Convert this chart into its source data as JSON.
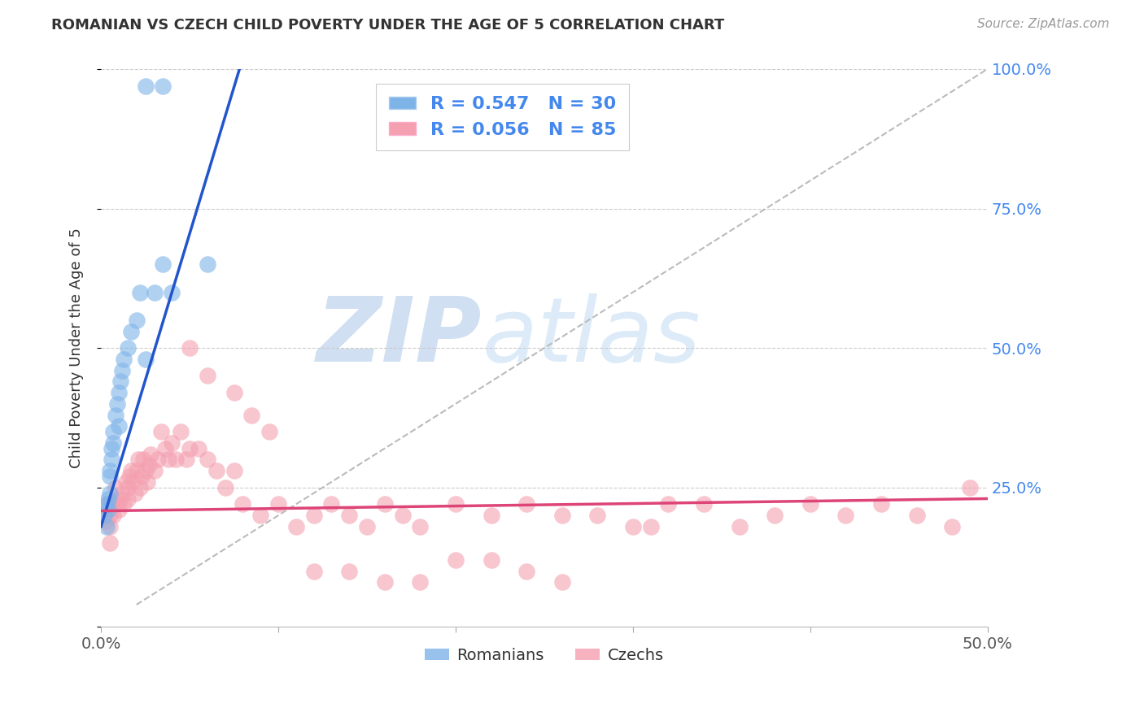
{
  "title": "ROMANIAN VS CZECH CHILD POVERTY UNDER THE AGE OF 5 CORRELATION CHART",
  "source": "Source: ZipAtlas.com",
  "ylabel": "Child Poverty Under the Age of 5",
  "xlim": [
    0,
    0.5
  ],
  "ylim": [
    0,
    1.0
  ],
  "yticks": [
    0.0,
    0.25,
    0.5,
    0.75,
    1.0
  ],
  "ytick_labels_right": [
    "",
    "25.0%",
    "50.0%",
    "75.0%",
    "100.0%"
  ],
  "xtick_positions": [
    0.0,
    0.1,
    0.2,
    0.3,
    0.4,
    0.5
  ],
  "xtick_labels": [
    "0.0%",
    "",
    "",
    "",
    "",
    "50.0%"
  ],
  "legend_label1": "Romanians",
  "legend_label2": "Czechs",
  "legend_line1": "R = 0.547   N = 30",
  "legend_line2": "R = 0.056   N = 85",
  "watermark_text": "ZIPatlas",
  "romanian_color": "#7EB3E8",
  "czech_color": "#F4A0B0",
  "romanian_line_color": "#2255CC",
  "czech_line_color": "#DD4477",
  "diag_line_color": "#BBBBBB",
  "background_color": "#FFFFFF",
  "grid_color": "#CCCCCC",
  "romanian_points_x": [
    0.002,
    0.003,
    0.003,
    0.004,
    0.004,
    0.005,
    0.005,
    0.005,
    0.006,
    0.006,
    0.007,
    0.007,
    0.008,
    0.009,
    0.01,
    0.01,
    0.011,
    0.012,
    0.013,
    0.015,
    0.017,
    0.02,
    0.022,
    0.025,
    0.03,
    0.035,
    0.04,
    0.06,
    0.025,
    0.035
  ],
  "romanian_points_y": [
    0.2,
    0.18,
    0.22,
    0.21,
    0.23,
    0.24,
    0.27,
    0.28,
    0.3,
    0.32,
    0.35,
    0.33,
    0.38,
    0.4,
    0.36,
    0.42,
    0.44,
    0.46,
    0.48,
    0.5,
    0.53,
    0.55,
    0.6,
    0.48,
    0.6,
    0.65,
    0.6,
    0.65,
    0.97,
    0.97
  ],
  "czech_points_x": [
    0.003,
    0.004,
    0.005,
    0.005,
    0.005,
    0.006,
    0.007,
    0.008,
    0.009,
    0.01,
    0.011,
    0.012,
    0.013,
    0.014,
    0.015,
    0.015,
    0.016,
    0.017,
    0.018,
    0.019,
    0.02,
    0.021,
    0.022,
    0.023,
    0.024,
    0.025,
    0.026,
    0.027,
    0.028,
    0.03,
    0.032,
    0.034,
    0.036,
    0.038,
    0.04,
    0.042,
    0.045,
    0.048,
    0.05,
    0.055,
    0.06,
    0.065,
    0.07,
    0.075,
    0.08,
    0.09,
    0.1,
    0.11,
    0.12,
    0.13,
    0.14,
    0.15,
    0.16,
    0.17,
    0.18,
    0.2,
    0.22,
    0.24,
    0.26,
    0.28,
    0.3,
    0.32,
    0.34,
    0.36,
    0.38,
    0.4,
    0.42,
    0.44,
    0.46,
    0.48,
    0.05,
    0.06,
    0.075,
    0.085,
    0.095,
    0.12,
    0.14,
    0.16,
    0.18,
    0.2,
    0.22,
    0.24,
    0.26,
    0.31,
    0.49
  ],
  "czech_points_y": [
    0.19,
    0.22,
    0.15,
    0.18,
    0.2,
    0.22,
    0.2,
    0.25,
    0.22,
    0.21,
    0.23,
    0.24,
    0.22,
    0.26,
    0.23,
    0.25,
    0.27,
    0.28,
    0.26,
    0.24,
    0.28,
    0.3,
    0.25,
    0.27,
    0.3,
    0.28,
    0.26,
    0.29,
    0.31,
    0.28,
    0.3,
    0.35,
    0.32,
    0.3,
    0.33,
    0.3,
    0.35,
    0.3,
    0.32,
    0.32,
    0.3,
    0.28,
    0.25,
    0.28,
    0.22,
    0.2,
    0.22,
    0.18,
    0.2,
    0.22,
    0.2,
    0.18,
    0.22,
    0.2,
    0.18,
    0.22,
    0.2,
    0.22,
    0.2,
    0.2,
    0.18,
    0.22,
    0.22,
    0.18,
    0.2,
    0.22,
    0.2,
    0.22,
    0.2,
    0.18,
    0.5,
    0.45,
    0.42,
    0.38,
    0.35,
    0.1,
    0.1,
    0.08,
    0.08,
    0.12,
    0.12,
    0.1,
    0.08,
    0.18,
    0.25
  ],
  "romanian_line_x": [
    0.0,
    0.08
  ],
  "romanian_line_y": [
    0.18,
    1.02
  ],
  "czech_line_x": [
    0.0,
    0.5
  ],
  "czech_line_y": [
    0.208,
    0.23
  ],
  "diag_line_x": [
    0.02,
    0.5
  ],
  "diag_line_y": [
    0.04,
    1.0
  ]
}
